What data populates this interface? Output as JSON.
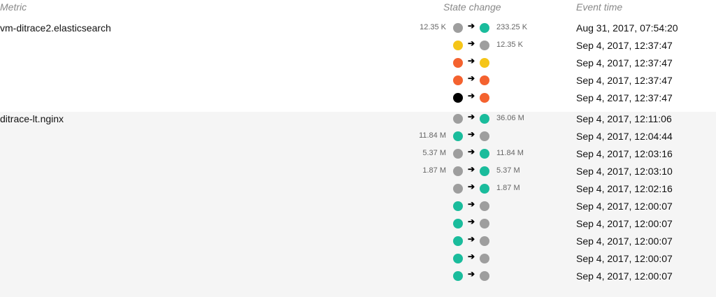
{
  "colors": {
    "grey": "#9e9e9e",
    "teal": "#1abc9c",
    "yellow": "#f5c518",
    "orange": "#f4622f",
    "black": "#000000"
  },
  "header": {
    "metric": "Metric",
    "state_change": "State change",
    "event_time": "Event time"
  },
  "groups": [
    {
      "metric": "vm-ditrace2.elasticsearch",
      "rows": [
        {
          "from_value": "12.35 K",
          "from": "grey",
          "to": "teal",
          "to_value": "233.25 K",
          "time": "Aug 31, 2017, 07:54:20"
        },
        {
          "from_value": "",
          "from": "yellow",
          "to": "grey",
          "to_value": "12.35 K",
          "time": "Sep 4, 2017, 12:37:47"
        },
        {
          "from_value": "",
          "from": "orange",
          "to": "yellow",
          "to_value": "",
          "time": "Sep 4, 2017, 12:37:47"
        },
        {
          "from_value": "",
          "from": "orange",
          "to": "orange",
          "to_value": "",
          "time": "Sep 4, 2017, 12:37:47"
        },
        {
          "from_value": "",
          "from": "black",
          "to": "orange",
          "to_value": "",
          "time": "Sep 4, 2017, 12:37:47"
        }
      ]
    },
    {
      "metric": "ditrace-lt.nginx",
      "rows": [
        {
          "from_value": "",
          "from": "grey",
          "to": "teal",
          "to_value": "36.06 M",
          "time": "Sep 4, 2017, 12:11:06"
        },
        {
          "from_value": "11.84 M",
          "from": "teal",
          "to": "grey",
          "to_value": "",
          "time": "Sep 4, 2017, 12:04:44"
        },
        {
          "from_value": "5.37 M",
          "from": "grey",
          "to": "teal",
          "to_value": "11.84 M",
          "time": "Sep 4, 2017, 12:03:16"
        },
        {
          "from_value": "1.87 M",
          "from": "grey",
          "to": "teal",
          "to_value": "5.37 M",
          "time": "Sep 4, 2017, 12:03:10"
        },
        {
          "from_value": "",
          "from": "grey",
          "to": "teal",
          "to_value": "1.87 M",
          "time": "Sep 4, 2017, 12:02:16"
        },
        {
          "from_value": "",
          "from": "teal",
          "to": "grey",
          "to_value": "",
          "time": "Sep 4, 2017, 12:00:07"
        },
        {
          "from_value": "",
          "from": "teal",
          "to": "grey",
          "to_value": "",
          "time": "Sep 4, 2017, 12:00:07"
        },
        {
          "from_value": "",
          "from": "teal",
          "to": "grey",
          "to_value": "",
          "time": "Sep 4, 2017, 12:00:07"
        },
        {
          "from_value": "",
          "from": "teal",
          "to": "grey",
          "to_value": "",
          "time": "Sep 4, 2017, 12:00:07"
        },
        {
          "from_value": "",
          "from": "teal",
          "to": "grey",
          "to_value": "",
          "time": "Sep 4, 2017, 12:00:07"
        }
      ]
    }
  ]
}
